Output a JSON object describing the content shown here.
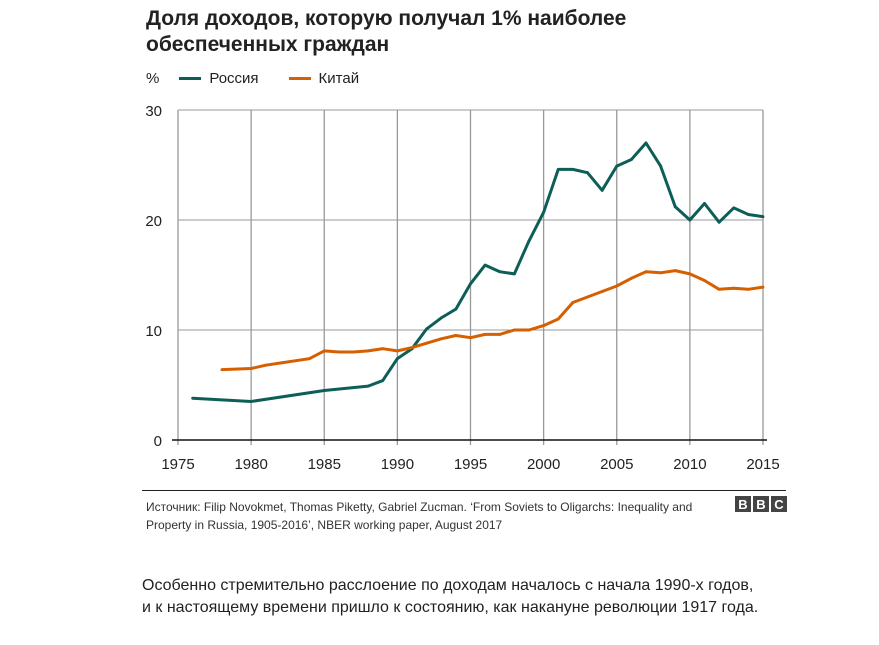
{
  "chart_data": {
    "type": "line",
    "title": "Доля доходов, которую получал 1% наиболее обеспеченных граждан",
    "ylabel": "%",
    "xlim": [
      1975,
      2015
    ],
    "ylim": [
      0,
      30
    ],
    "xticks": [
      1975,
      1980,
      1985,
      1990,
      1995,
      2000,
      2005,
      2010,
      2015
    ],
    "yticks": [
      0,
      10,
      20,
      30
    ],
    "grid": true,
    "legend_placement": "top-left",
    "series": [
      {
        "name": "Россия",
        "color": "#0e5e58",
        "x": [
          1976,
          1980,
          1985,
          1988,
          1989,
          1990,
          1991,
          1992,
          1993,
          1994,
          1995,
          1996,
          1997,
          1998,
          1999,
          2000,
          2001,
          2002,
          2003,
          2004,
          2005,
          2006,
          2007,
          2008,
          2009,
          2010,
          2011,
          2012,
          2013,
          2014,
          2015
        ],
        "values": [
          3.8,
          3.5,
          4.5,
          4.9,
          5.4,
          7.4,
          8.3,
          10.1,
          11.1,
          11.9,
          14.2,
          15.9,
          15.3,
          15.1,
          18.1,
          20.7,
          24.6,
          24.6,
          24.3,
          22.7,
          24.9,
          25.5,
          27.0,
          24.9,
          21.2,
          20.0,
          21.5,
          19.8,
          21.1,
          20.5,
          20.3
        ]
      },
      {
        "name": "Китай",
        "color": "#d65f00",
        "x": [
          1978,
          1980,
          1981,
          1982,
          1983,
          1984,
          1985,
          1986,
          1987,
          1988,
          1989,
          1990,
          1991,
          1992,
          1993,
          1994,
          1995,
          1996,
          1997,
          1998,
          1999,
          2000,
          2001,
          2002,
          2003,
          2004,
          2005,
          2006,
          2007,
          2008,
          2009,
          2010,
          2011,
          2012,
          2013,
          2014,
          2015
        ],
        "values": [
          6.4,
          6.5,
          6.8,
          7.0,
          7.2,
          7.4,
          8.1,
          8.0,
          8.0,
          8.1,
          8.3,
          8.1,
          8.4,
          8.8,
          9.2,
          9.5,
          9.3,
          9.6,
          9.6,
          10.0,
          10.0,
          10.4,
          11.0,
          12.5,
          13.0,
          13.5,
          14.0,
          14.7,
          15.3,
          15.2,
          15.4,
          15.1,
          14.5,
          13.7,
          13.8,
          13.7,
          13.9
        ]
      }
    ]
  },
  "source": "Источник: Filip Novokmet, Thomas Piketty, Gabriel Zucman. ‘From Soviets to Oligarchs: Inequality and Property in Russia, 1905-2016’, NBER working paper, August 2017",
  "logo": "BBC",
  "caption": "Особенно стремительно расслоение по доходам началось с начала 1990-х годов, и к настоящему времени пришло к состоянию, как накануне революции 1917 года."
}
